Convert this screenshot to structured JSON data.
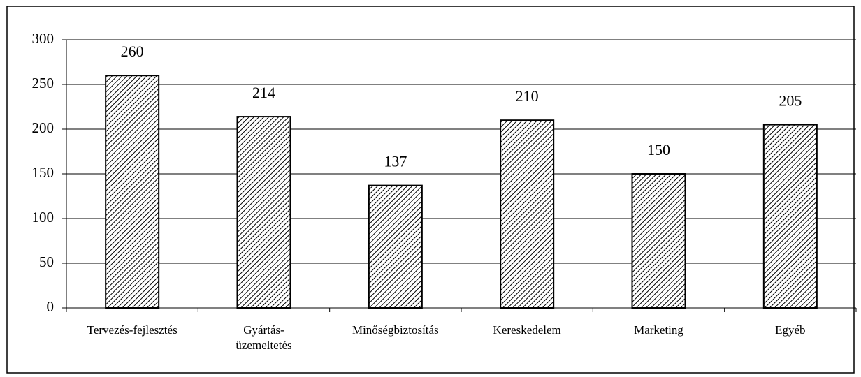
{
  "chart_data": {
    "type": "bar",
    "categories": [
      "Tervezés-fejlesztés",
      "Gyártás-\nüzemeltetés",
      "Minőségbiztosítás",
      "Kereskedelem",
      "Marketing",
      "Egyéb"
    ],
    "values": [
      260,
      214,
      137,
      210,
      150,
      205
    ],
    "color": "#000000",
    "ylim": [
      0,
      300
    ],
    "yticks": [
      0,
      50,
      100,
      150,
      200,
      250,
      300
    ],
    "grid": true
  }
}
